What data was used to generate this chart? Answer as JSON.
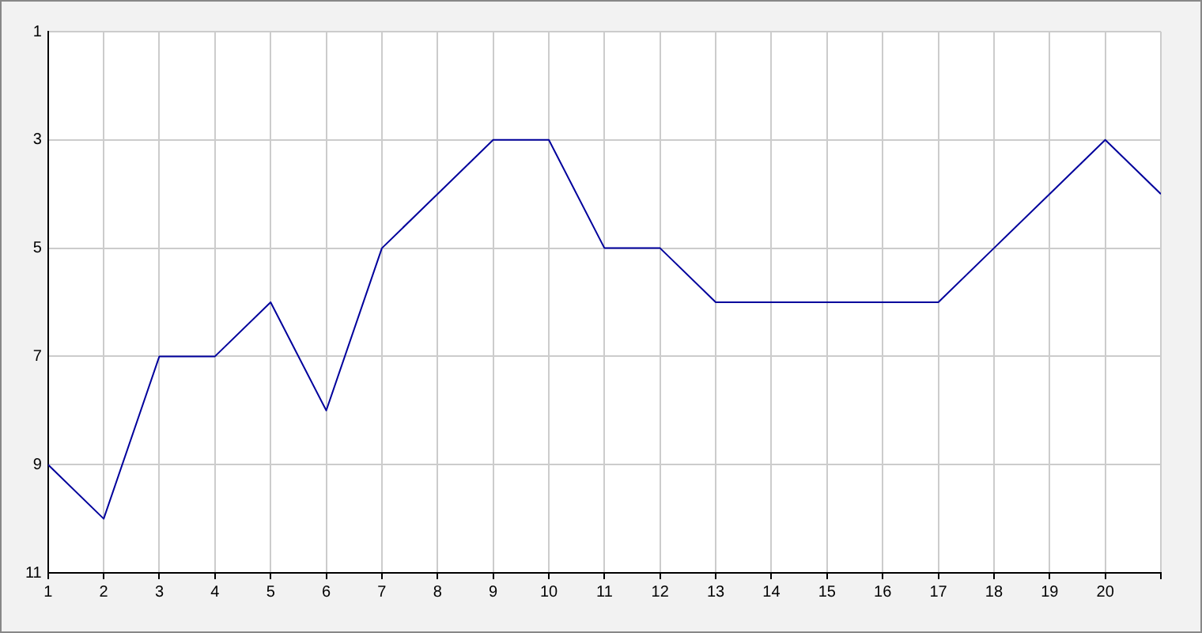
{
  "chart_data": {
    "type": "line",
    "x": [
      1,
      2,
      3,
      4,
      5,
      6,
      7,
      8,
      9,
      10,
      11,
      12,
      13,
      14,
      15,
      16,
      17,
      18,
      19,
      20,
      21
    ],
    "series": [
      {
        "color": "#00009c",
        "values": [
          9,
          10,
          7,
          7,
          6,
          8,
          5,
          4,
          3,
          3,
          5,
          5,
          6,
          6,
          6,
          6,
          6,
          5,
          4,
          3,
          4
        ]
      }
    ],
    "xlim": [
      1,
      21
    ],
    "xticks": [
      1,
      2,
      3,
      4,
      5,
      6,
      7,
      8,
      9,
      10,
      11,
      12,
      13,
      14,
      15,
      16,
      17,
      18,
      19,
      20,
      {
        "value": 21,
        "label": null
      }
    ],
    "ylim": [
      11,
      1
    ],
    "yticks": [
      1,
      3,
      5,
      7,
      9,
      11
    ],
    "grid": true,
    "legend": false,
    "marker": "none",
    "line_style": "solid"
  }
}
